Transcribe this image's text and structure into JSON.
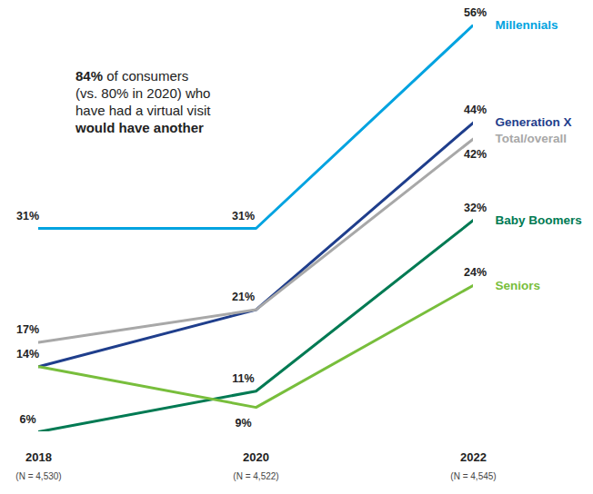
{
  "chart_data": {
    "type": "line",
    "categories": [
      "2018",
      "2020",
      "2022"
    ],
    "category_sublabels": [
      "(N = 4,530)",
      "(N = 4,522)",
      "(N = 4,545)"
    ],
    "annotation": [
      [
        {
          "text": "84%",
          "bold": true
        },
        {
          "text": " of consumers"
        }
      ],
      [
        {
          "text": "(vs. 80% in 2020) who"
        }
      ],
      [
        {
          "text": "have had a virtual visit"
        }
      ],
      [
        {
          "text": "would have another",
          "bold": true
        }
      ]
    ],
    "series": [
      {
        "name": "Millennials",
        "color": "#00a3e0",
        "values": [
          31,
          31,
          56
        ],
        "value_labels": [
          "31%",
          "31%",
          "56%"
        ]
      },
      {
        "name": "Generation X",
        "color": "#1f3e8c",
        "values": [
          14,
          21,
          44
        ],
        "value_labels": [
          "14%",
          null,
          "44%"
        ]
      },
      {
        "name": "Total/overall",
        "color": "#a8a8a8",
        "values": [
          17,
          21,
          42
        ],
        "value_labels": [
          "17%",
          "21%",
          "42%"
        ]
      },
      {
        "name": "Baby Boomers",
        "color": "#007a53",
        "values": [
          6,
          11,
          32
        ],
        "value_labels": [
          "6%",
          "11%",
          "32%"
        ]
      },
      {
        "name": "Seniors",
        "color": "#78be3c",
        "values": [
          14,
          9,
          24
        ],
        "value_labels": [
          null,
          "9%",
          "24%"
        ]
      }
    ],
    "ylim": [
      6,
      56
    ],
    "tick_labels": "x",
    "data_labels": true
  }
}
